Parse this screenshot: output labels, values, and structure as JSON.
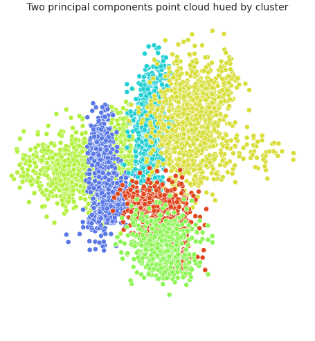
{
  "chart_data": {
    "type": "scatter",
    "title": "Two principal components point cloud hued by cluster",
    "xlabel": "",
    "ylabel": "",
    "axes_visible": false,
    "grid": false,
    "legend": "none",
    "xlim": [
      -1.0,
      1.0
    ],
    "ylim": [
      -1.0,
      1.0
    ],
    "series": [
      {
        "color": "#b3f040",
        "clusters": [
          {
            "center": [
              -0.48,
              0.08
            ],
            "spread": [
              0.16,
              0.13
            ],
            "count": 520
          },
          {
            "center": [
              -0.22,
              0.2
            ],
            "spread": [
              0.05,
              0.16
            ],
            "count": 160
          },
          {
            "center": [
              -0.6,
              0.1
            ],
            "spread": [
              0.15,
              0.09
            ],
            "count": 200
          }
        ]
      },
      {
        "color": "#5a78e6",
        "clusters": [
          {
            "center": [
              -0.36,
              0.22
            ],
            "spread": [
              0.04,
              0.12
            ],
            "count": 300
          },
          {
            "center": [
              -0.3,
              -0.1
            ],
            "spread": [
              0.07,
              0.1
            ],
            "count": 300
          },
          {
            "center": [
              -0.38,
              -0.28
            ],
            "spread": [
              0.05,
              0.06
            ],
            "count": 40
          }
        ]
      },
      {
        "color": "#22cfd3",
        "clusters": [
          {
            "center": [
              -0.04,
              0.32
            ],
            "spread": [
              0.055,
              0.2
            ],
            "count": 700
          },
          {
            "center": [
              0.05,
              0.7
            ],
            "spread": [
              0.03,
              0.08
            ],
            "count": 40
          }
        ]
      },
      {
        "color": "#d8de3c",
        "clusters": [
          {
            "center": [
              0.22,
              0.38
            ],
            "spread": [
              0.12,
              0.21
            ],
            "count": 900
          },
          {
            "center": [
              0.62,
              0.2
            ],
            "spread": [
              0.12,
              0.07
            ],
            "count": 60
          },
          {
            "center": [
              0.4,
              0.62
            ],
            "spread": [
              0.1,
              0.07
            ],
            "count": 100
          }
        ]
      },
      {
        "color": "#e0471f",
        "clusters": [
          {
            "center": [
              0.04,
              -0.18
            ],
            "spread": [
              0.11,
              0.1
            ],
            "count": 380
          },
          {
            "center": [
              0.18,
              -0.5
            ],
            "spread": [
              0.06,
              0.04
            ],
            "count": 50
          },
          {
            "center": [
              -0.12,
              -0.12
            ],
            "spread": [
              0.06,
              0.05
            ],
            "count": 60
          }
        ]
      },
      {
        "color": "#8ef556",
        "clusters": [
          {
            "center": [
              0.04,
              -0.38
            ],
            "spread": [
              0.13,
              0.1
            ],
            "count": 380
          },
          {
            "center": [
              0.1,
              -0.56
            ],
            "spread": [
              0.08,
              0.04
            ],
            "count": 60
          }
        ]
      }
    ]
  }
}
